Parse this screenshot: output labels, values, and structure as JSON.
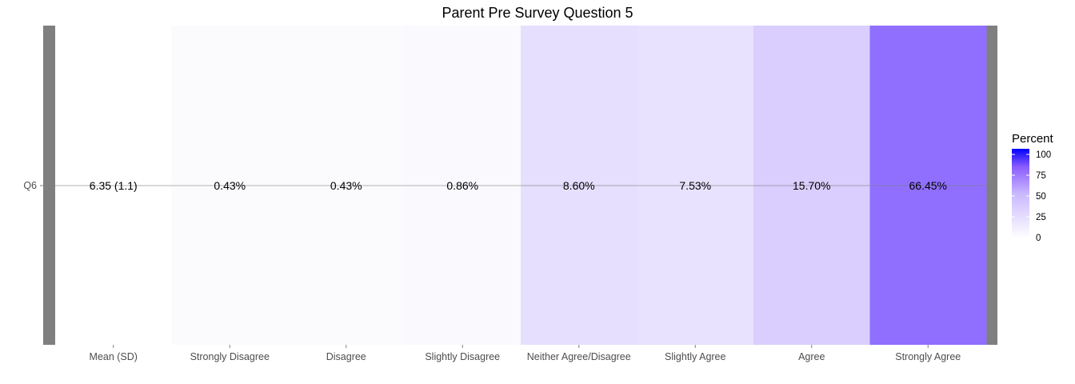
{
  "chart_data": {
    "type": "heatmap",
    "title": "Parent Pre Survey Question 5",
    "row_label": "Q6",
    "categories": [
      "Mean (SD)",
      "Strongly Disagree",
      "Disagree",
      "Slightly Disagree",
      "Neither Agree/Disagree",
      "Slightly Agree",
      "Agree",
      "Strongly Agree"
    ],
    "cell_labels": [
      "6.35 (1.1)",
      "0.43%",
      "0.43%",
      "0.86%",
      "8.60%",
      "7.53%",
      "15.70%",
      "66.45%"
    ],
    "values": [
      null,
      0.43,
      0.43,
      0.86,
      8.6,
      7.53,
      15.7,
      66.45
    ],
    "legend": {
      "title": "Percent",
      "ticks": [
        "100",
        "75",
        "50",
        "25",
        "0"
      ],
      "range": [
        0,
        100
      ],
      "low_color": "#ffffff",
      "high_color": "#0000ff"
    }
  }
}
